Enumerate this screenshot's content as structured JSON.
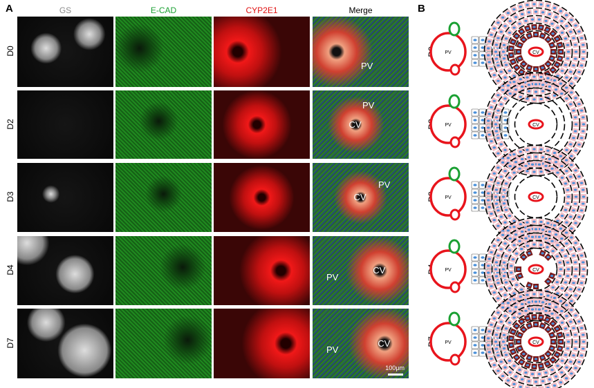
{
  "panel_a": {
    "label": "A",
    "columns": [
      {
        "name": "GS",
        "color": "#8a8a8a"
      },
      {
        "name": "E-CAD",
        "color": "#1aa032"
      },
      {
        "name": "CYP2E1",
        "color": "#e01010"
      },
      {
        "name": "Merge",
        "color": "#000000"
      }
    ],
    "rows": [
      {
        "label": "D0",
        "merge_labels": [
          "PV"
        ]
      },
      {
        "label": "D2",
        "merge_labels": [
          "PV",
          "CV"
        ]
      },
      {
        "label": "D3",
        "merge_labels": [
          "CV",
          "PV"
        ]
      },
      {
        "label": "D4",
        "merge_labels": [
          "PV",
          "CV"
        ]
      },
      {
        "label": "D7",
        "merge_labels": [
          "PV",
          "CV"
        ]
      }
    ],
    "scale_bar": "100μm"
  },
  "panel_b": {
    "label": "B",
    "pv_label": "PV",
    "cv_label": "CV",
    "colors": {
      "vessel": "#e8141c",
      "bile_duct": "#1aa032",
      "nucleus": "#4a90d9",
      "pericentral_cyp2e1": "#f4c0c8",
      "gs_positive": "#7a1a1a"
    },
    "rows": [
      {
        "label": "D0",
        "gs_rings": 2,
        "gs_partial": false,
        "pink_rings": 5
      },
      {
        "label": "D2",
        "gs_rings": 0,
        "gs_partial": false,
        "pink_rings": 2
      },
      {
        "label": "D3",
        "gs_rings": 0,
        "gs_partial": false,
        "pink_rings": 3
      },
      {
        "label": "D4",
        "gs_rings": 1,
        "gs_partial": true,
        "pink_rings": 4
      },
      {
        "label": "D7",
        "gs_rings": 2,
        "gs_partial": false,
        "pink_rings": 4
      }
    ]
  }
}
